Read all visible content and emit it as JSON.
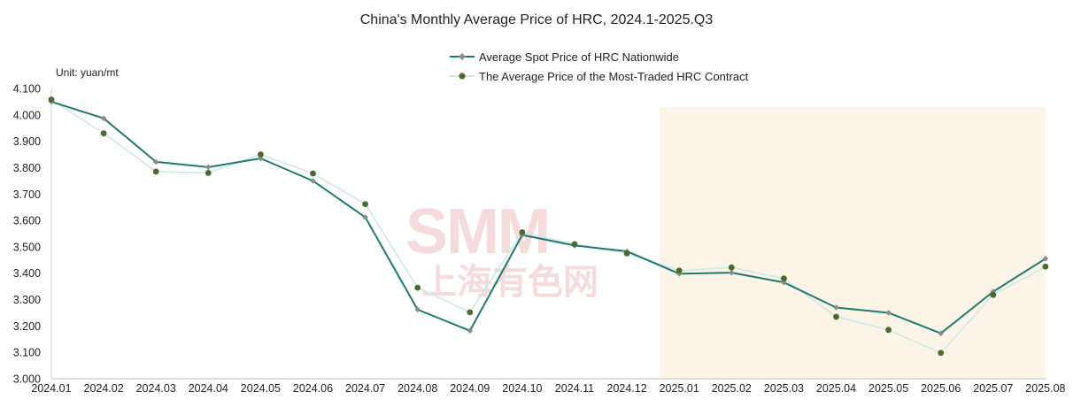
{
  "chart_data": {
    "type": "line",
    "title": "China's Monthly Average Price of HRC, 2024.1-2025.Q3",
    "unit_label": "Unit: yuan/mt",
    "categories": [
      "2024.01",
      "2024.02",
      "2024.03",
      "2024.04",
      "2024.05",
      "2024.06",
      "2024.07",
      "2024.08",
      "2024.09",
      "2024.10",
      "2024.11",
      "2024.12",
      "2025.01",
      "2025.02",
      "2025.03",
      "2025.04",
      "2025.05",
      "2025.06",
      "2025.07",
      "2025.08"
    ],
    "ylim": [
      3000,
      4100
    ],
    "yticks": [
      "3.000",
      "3.100",
      "3.200",
      "3.300",
      "3.400",
      "3.500",
      "3.600",
      "3.700",
      "3.800",
      "3.900",
      "4.000",
      "4.100"
    ],
    "series": [
      {
        "name": "Average Spot Price of HRC Nationwide",
        "line_color": "#1e7b6f",
        "marker_color": "#8c8c8c",
        "values": [
          4050,
          3987,
          3822,
          3802,
          3835,
          3750,
          3612,
          3262,
          3182,
          3545,
          3505,
          3483,
          3398,
          3402,
          3365,
          3270,
          3250,
          3172,
          3330,
          3455
        ]
      },
      {
        "name": "The Average Price of the Most-Traded HRC Contract",
        "line_color": "#cfe8e6",
        "marker_color": "#4a6b2f",
        "values": [
          4058,
          3930,
          3785,
          3780,
          3850,
          3778,
          3662,
          3345,
          3252,
          3555,
          3510,
          3475,
          3410,
          3422,
          3380,
          3235,
          3185,
          3098,
          3318,
          3425
        ]
      }
    ],
    "highlight_categories": [
      "2025.01",
      "2025.08"
    ],
    "highlight_color": "#fdf4e8",
    "watermark": {
      "latin": "SMM",
      "chinese": "上海有色网"
    },
    "grid": false,
    "legend_position": "top-right"
  }
}
